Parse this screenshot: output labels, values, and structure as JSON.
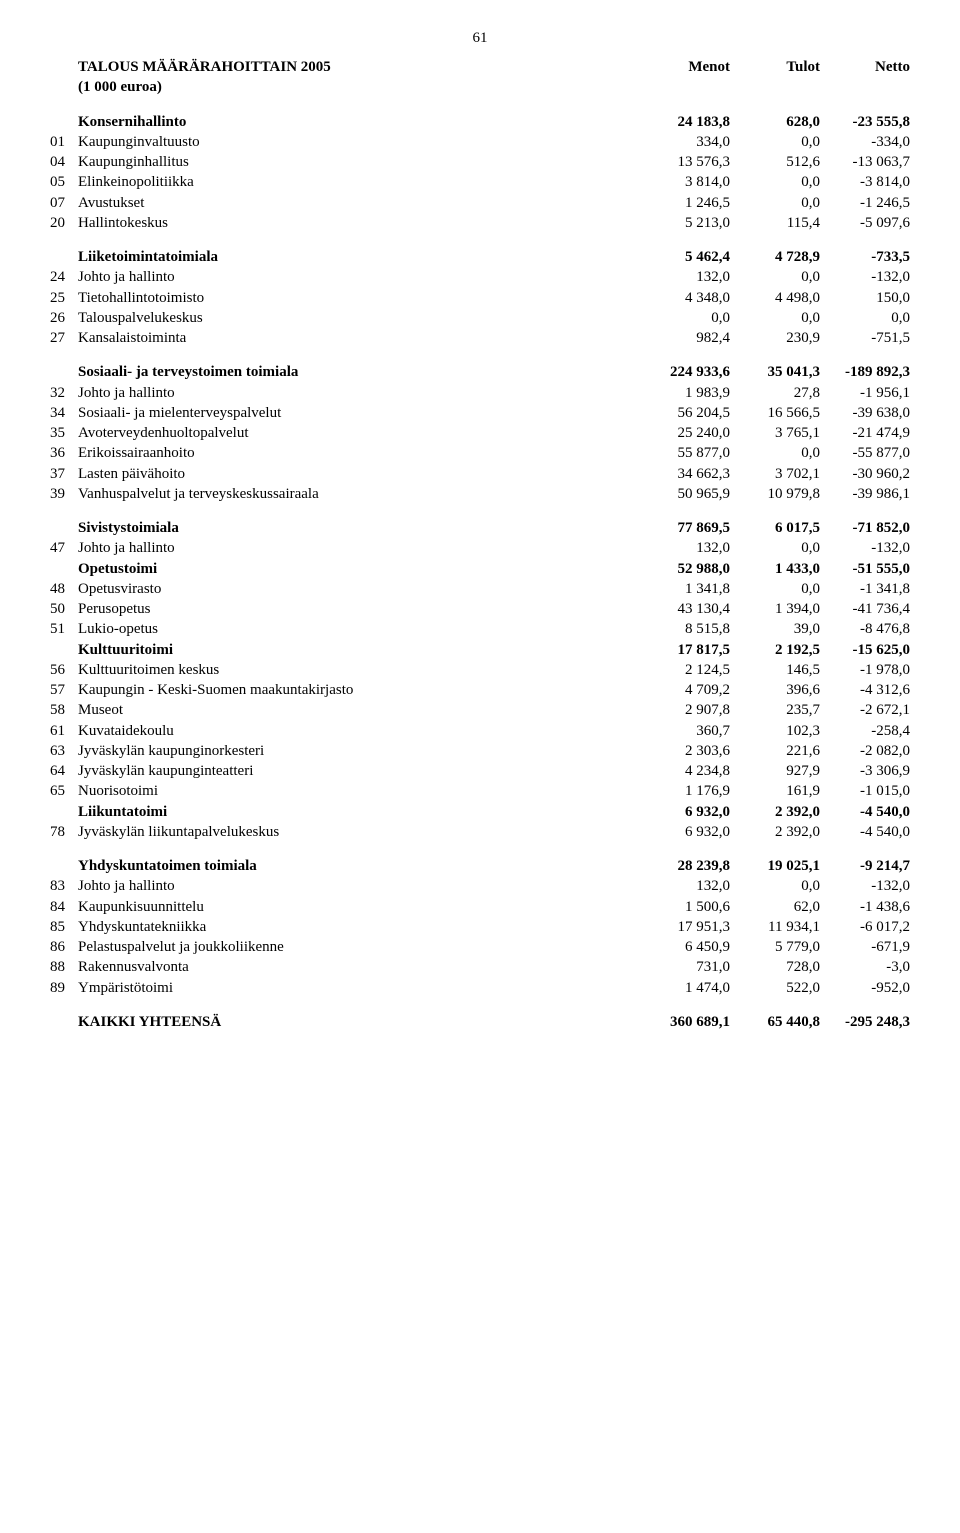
{
  "page_number": "61",
  "header": {
    "title": "TALOUS MÄÄRÄRAHOITTAIN 2005",
    "subtitle": "(1 000 euroa)",
    "col1": "Menot",
    "col2": "Tulot",
    "col3": "Netto"
  },
  "sections": [
    {
      "title_row": {
        "label": "Konsernihallinto",
        "v1": "24 183,8",
        "v2": "628,0",
        "v3": "-23 555,8",
        "bold": true
      },
      "rows": [
        {
          "code": "01",
          "label": "Kaupunginvaltuusto",
          "v1": "334,0",
          "v2": "0,0",
          "v3": "-334,0"
        },
        {
          "code": "04",
          "label": "Kaupunginhallitus",
          "v1": "13 576,3",
          "v2": "512,6",
          "v3": "-13 063,7"
        },
        {
          "code": "05",
          "label": "Elinkeinopolitiikka",
          "v1": "3 814,0",
          "v2": "0,0",
          "v3": "-3 814,0"
        },
        {
          "code": "07",
          "label": "Avustukset",
          "v1": "1 246,5",
          "v2": "0,0",
          "v3": "-1 246,5"
        },
        {
          "code": "20",
          "label": "Hallintokeskus",
          "v1": "5 213,0",
          "v2": "115,4",
          "v3": "-5 097,6"
        }
      ]
    },
    {
      "title_row": {
        "label": "Liiketoimintatoimiala",
        "v1": "5 462,4",
        "v2": "4 728,9",
        "v3": "-733,5",
        "bold": true
      },
      "rows": [
        {
          "code": "24",
          "label": "Johto ja hallinto",
          "v1": "132,0",
          "v2": "0,0",
          "v3": "-132,0"
        },
        {
          "code": "25",
          "label": "Tietohallintotoimisto",
          "v1": "4 348,0",
          "v2": "4 498,0",
          "v3": "150,0"
        },
        {
          "code": "26",
          "label": "Talouspalvelukeskus",
          "v1": "0,0",
          "v2": "0,0",
          "v3": "0,0"
        },
        {
          "code": "27",
          "label": "Kansalaistoiminta",
          "v1": "982,4",
          "v2": "230,9",
          "v3": "-751,5"
        }
      ]
    },
    {
      "title_row": {
        "label": "Sosiaali- ja terveystoimen toimiala",
        "v1": "224 933,6",
        "v2": "35 041,3",
        "v3": "-189 892,3",
        "bold": true
      },
      "rows": [
        {
          "code": "32",
          "label": "Johto ja hallinto",
          "v1": "1 983,9",
          "v2": "27,8",
          "v3": "-1 956,1"
        },
        {
          "code": "34",
          "label": "Sosiaali- ja mielenterveyspalvelut",
          "v1": "56 204,5",
          "v2": "16 566,5",
          "v3": "-39 638,0"
        },
        {
          "code": "35",
          "label": "Avoterveydenhuoltopalvelut",
          "v1": "25 240,0",
          "v2": "3 765,1",
          "v3": "-21 474,9"
        },
        {
          "code": "36",
          "label": "Erikoissairaanhoito",
          "v1": "55 877,0",
          "v2": "0,0",
          "v3": "-55 877,0"
        },
        {
          "code": "37",
          "label": "Lasten päivähoito",
          "v1": "34 662,3",
          "v2": "3 702,1",
          "v3": "-30 960,2"
        },
        {
          "code": "39",
          "label": "Vanhuspalvelut ja terveyskeskussairaala",
          "v1": "50 965,9",
          "v2": "10 979,8",
          "v3": "-39 986,1"
        }
      ]
    },
    {
      "title_row": {
        "label": "Sivistystoimiala",
        "v1": "77 869,5",
        "v2": "6 017,5",
        "v3": "-71 852,0",
        "bold": true
      },
      "rows": [
        {
          "code": "47",
          "label": "Johto ja hallinto",
          "v1": "132,0",
          "v2": "0,0",
          "v3": "-132,0"
        }
      ],
      "sub_title_row": {
        "label": "Opetustoimi",
        "v1": "52 988,0",
        "v2": "1 433,0",
        "v3": "-51 555,0",
        "bold": true
      },
      "sub_rows": [
        {
          "code": "48",
          "label": "Opetusvirasto",
          "v1": "1 341,8",
          "v2": "0,0",
          "v3": "-1 341,8"
        },
        {
          "code": "50",
          "label": "Perusopetus",
          "v1": "43 130,4",
          "v2": "1 394,0",
          "v3": "-41 736,4"
        },
        {
          "code": "51",
          "label": "Lukio-opetus",
          "v1": "8 515,8",
          "v2": "39,0",
          "v3": "-8 476,8"
        }
      ],
      "sub_title_row2": {
        "label": "Kulttuuritoimi",
        "v1": "17 817,5",
        "v2": "2 192,5",
        "v3": "-15 625,0",
        "bold": true
      },
      "sub_rows2": [
        {
          "code": "56",
          "label": "Kulttuuritoimen keskus",
          "v1": "2 124,5",
          "v2": "146,5",
          "v3": "-1 978,0"
        },
        {
          "code": "57",
          "label": "Kaupungin - Keski-Suomen maakuntakirjasto",
          "v1": "4 709,2",
          "v2": "396,6",
          "v3": "-4 312,6"
        },
        {
          "code": "58",
          "label": "Museot",
          "v1": "2 907,8",
          "v2": "235,7",
          "v3": "-2 672,1"
        },
        {
          "code": "61",
          "label": "Kuvataidekoulu",
          "v1": "360,7",
          "v2": "102,3",
          "v3": "-258,4"
        },
        {
          "code": "63",
          "label": "Jyväskylän kaupunginorkesteri",
          "v1": "2 303,6",
          "v2": "221,6",
          "v3": "-2 082,0"
        },
        {
          "code": "64",
          "label": "Jyväskylän kaupunginteatteri",
          "v1": "4 234,8",
          "v2": "927,9",
          "v3": "-3 306,9"
        },
        {
          "code": "65",
          "label": "Nuorisotoimi",
          "v1": "1 176,9",
          "v2": "161,9",
          "v3": "-1 015,0"
        }
      ],
      "sub_title_row3": {
        "label": "Liikuntatoimi",
        "v1": "6 932,0",
        "v2": "2 392,0",
        "v3": "-4 540,0",
        "bold": true
      },
      "sub_rows3": [
        {
          "code": "78",
          "label": "Jyväskylän liikuntapalvelukeskus",
          "v1": "6 932,0",
          "v2": "2 392,0",
          "v3": "-4 540,0"
        }
      ]
    },
    {
      "title_row": {
        "label": "Yhdyskuntatoimen toimiala",
        "v1": "28 239,8",
        "v2": "19 025,1",
        "v3": "-9 214,7",
        "bold": true
      },
      "rows": [
        {
          "code": "83",
          "label": "Johto ja hallinto",
          "v1": "132,0",
          "v2": "0,0",
          "v3": "-132,0"
        },
        {
          "code": "84",
          "label": "Kaupunkisuunnittelu",
          "v1": "1 500,6",
          "v2": "62,0",
          "v3": "-1 438,6"
        },
        {
          "code": "85",
          "label": "Yhdyskuntatekniikka",
          "v1": "17 951,3",
          "v2": "11 934,1",
          "v3": "-6 017,2"
        },
        {
          "code": "86",
          "label": "Pelastuspalvelut ja joukkoliikenne",
          "v1": "6 450,9",
          "v2": "5 779,0",
          "v3": "-671,9"
        },
        {
          "code": "88",
          "label": "Rakennusvalvonta",
          "v1": "731,0",
          "v2": "728,0",
          "v3": "-3,0"
        },
        {
          "code": "89",
          "label": "Ympäristötoimi",
          "v1": "1 474,0",
          "v2": "522,0",
          "v3": "-952,0"
        }
      ]
    }
  ],
  "total_row": {
    "label": "KAIKKI YHTEENSÄ",
    "v1": "360 689,1",
    "v2": "65 440,8",
    "v3": "-295 248,3",
    "bold": true
  }
}
